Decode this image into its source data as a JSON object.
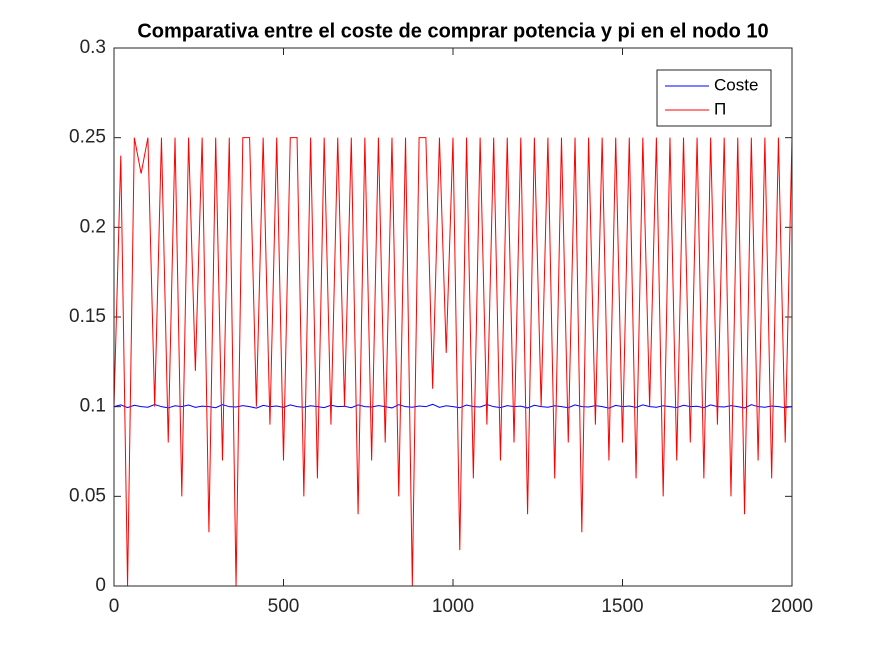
{
  "chart_data": {
    "type": "line",
    "title": "Comparativa entre el coste de comprar potencia y pi en el nodo 10",
    "x": [
      0,
      20,
      40,
      60,
      80,
      100,
      120,
      140,
      160,
      180,
      200,
      220,
      240,
      260,
      280,
      300,
      320,
      340,
      360,
      380,
      400,
      420,
      440,
      460,
      480,
      500,
      520,
      540,
      560,
      580,
      600,
      620,
      640,
      660,
      680,
      700,
      720,
      740,
      760,
      780,
      800,
      820,
      840,
      860,
      880,
      900,
      920,
      940,
      960,
      980,
      1000,
      1020,
      1040,
      1060,
      1080,
      1100,
      1120,
      1140,
      1160,
      1180,
      1200,
      1220,
      1240,
      1260,
      1280,
      1300,
      1320,
      1340,
      1360,
      1380,
      1400,
      1420,
      1440,
      1460,
      1480,
      1500,
      1520,
      1540,
      1560,
      1580,
      1600,
      1620,
      1640,
      1660,
      1680,
      1700,
      1720,
      1740,
      1760,
      1780,
      1800,
      1820,
      1840,
      1860,
      1880,
      1900,
      1920,
      1940,
      1960,
      1980,
      2000
    ],
    "series": [
      {
        "name": "Coste",
        "color": "#0000ff",
        "values": [
          0.1,
          0.101,
          0.0995,
          0.1008,
          0.1,
          0.0997,
          0.1012,
          0.1,
          0.0993,
          0.1005,
          0.1,
          0.1009,
          0.0996,
          0.1003,
          0.1,
          0.0994,
          0.1011,
          0.1,
          0.0998,
          0.1006,
          0.1,
          0.0992,
          0.1007,
          0.1,
          0.1004,
          0.0996,
          0.101,
          0.1,
          0.0997,
          0.1005,
          0.1,
          0.0995,
          0.1008,
          0.1,
          0.1002,
          0.0994,
          0.101,
          0.1,
          0.0998,
          0.1006,
          0.1,
          0.0993,
          0.1011,
          0.1,
          0.0997,
          0.1004,
          0.1,
          0.1013,
          0.0996,
          0.1005,
          0.1,
          0.0994,
          0.1009,
          0.1,
          0.0998,
          0.1012,
          0.1,
          0.0995,
          0.1006,
          0.1,
          0.1003,
          0.0993,
          0.1008,
          0.1,
          0.0997,
          0.1005,
          0.1,
          0.0994,
          0.101,
          0.1,
          0.0998,
          0.1006,
          0.1,
          0.0992,
          0.1007,
          0.1,
          0.1004,
          0.0996,
          0.101,
          0.1,
          0.0997,
          0.1005,
          0.1,
          0.0995,
          0.1008,
          0.1,
          0.1002,
          0.0994,
          0.101,
          0.1,
          0.0998,
          0.1006,
          0.1,
          0.0993,
          0.1011,
          0.1,
          0.0997,
          0.1004,
          0.1,
          0.0995,
          0.1
        ]
      },
      {
        "name": "Π",
        "color": "#ff0000",
        "values": [
          0.1,
          0.24,
          0,
          0.25,
          0.23,
          0.25,
          0.1,
          0.25,
          0.08,
          0.25,
          0.05,
          0.25,
          0.12,
          0.25,
          0.03,
          0.25,
          0.07,
          0.25,
          0,
          0.25,
          0.25,
          0.1,
          0.25,
          0.09,
          0.25,
          0.07,
          0.25,
          0.25,
          0.05,
          0.25,
          0.06,
          0.25,
          0.09,
          0.25,
          0.1,
          0.25,
          0.04,
          0.25,
          0.07,
          0.25,
          0.08,
          0.25,
          0.05,
          0.25,
          0,
          0.25,
          0.25,
          0.11,
          0.25,
          0.13,
          0.25,
          0.02,
          0.25,
          0.06,
          0.25,
          0.09,
          0.25,
          0.07,
          0.25,
          0.08,
          0.25,
          0.04,
          0.25,
          0.1,
          0.25,
          0.06,
          0.25,
          0.08,
          0.25,
          0.03,
          0.25,
          0.09,
          0.25,
          0.07,
          0.25,
          0.08,
          0.25,
          0.06,
          0.25,
          0.1,
          0.25,
          0.05,
          0.25,
          0.07,
          0.25,
          0.08,
          0.25,
          0.06,
          0.25,
          0.09,
          0.25,
          0.05,
          0.25,
          0.04,
          0.25,
          0.07,
          0.25,
          0.06,
          0.25,
          0.08,
          0.25
        ]
      }
    ],
    "xlim": [
      0,
      2000
    ],
    "xticks": [
      0,
      500,
      1000,
      1500,
      2000
    ],
    "ylim": [
      0,
      0.3
    ],
    "yticks": [
      0,
      0.05,
      0.1,
      0.15,
      0.2,
      0.25,
      0.3
    ],
    "legend": "northeast"
  }
}
